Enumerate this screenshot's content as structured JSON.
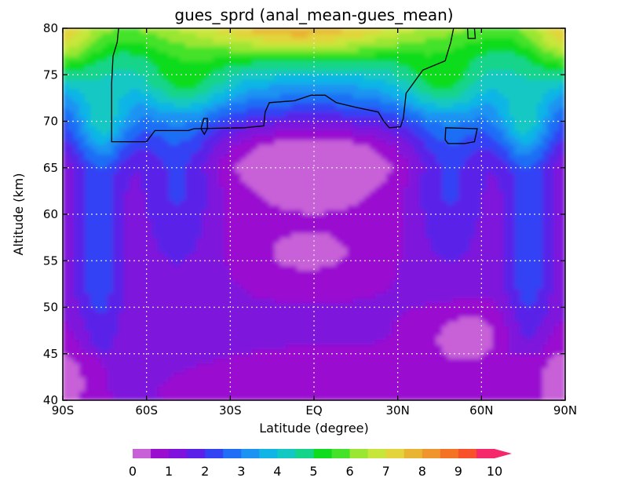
{
  "chart_data": {
    "type": "heatmap",
    "title": "gues_sprd (anal_mean-gues_mean)",
    "xlabel": "Latitude (degree)",
    "ylabel": "Altitude (km)",
    "xlim": [
      -90,
      90
    ],
    "ylim": [
      40,
      80
    ],
    "x_ticks": [
      {
        "value": -90,
        "label": "90S"
      },
      {
        "value": -60,
        "label": "60S"
      },
      {
        "value": -30,
        "label": "30S"
      },
      {
        "value": 0,
        "label": "EQ"
      },
      {
        "value": 30,
        "label": "30N"
      },
      {
        "value": 60,
        "label": "60N"
      },
      {
        "value": 90,
        "label": "90N"
      }
    ],
    "y_ticks": [
      {
        "value": 40,
        "label": "40"
      },
      {
        "value": 45,
        "label": "45"
      },
      {
        "value": 50,
        "label": "50"
      },
      {
        "value": 55,
        "label": "55"
      },
      {
        "value": 60,
        "label": "60"
      },
      {
        "value": 65,
        "label": "65"
      },
      {
        "value": 70,
        "label": "70"
      },
      {
        "value": 75,
        "label": "75"
      },
      {
        "value": 80,
        "label": "80"
      }
    ],
    "grid": true,
    "contour_level": 5,
    "colorbar": {
      "levels": [
        0,
        0.5,
        1,
        1.5,
        2,
        2.5,
        3,
        3.5,
        4,
        4.5,
        5,
        5.5,
        6,
        6.5,
        7,
        7.5,
        8,
        8.5,
        9,
        9.5,
        10
      ],
      "colors": [
        "#c861d8",
        "#9a0ed0",
        "#7f12dc",
        "#5a22e8",
        "#3243f4",
        "#1f6ef5",
        "#1a93f2",
        "#10b5e6",
        "#12c8c3",
        "#14d48a",
        "#10dc1e",
        "#45e22a",
        "#9ae632",
        "#c8e63a",
        "#e2d43a",
        "#e8b432",
        "#f0942c",
        "#f47224",
        "#f8502a",
        "#f4286a"
      ],
      "labels": [
        "0",
        "1",
        "2",
        "3",
        "4",
        "5",
        "6",
        "7",
        "8",
        "9",
        "10"
      ]
    }
  }
}
